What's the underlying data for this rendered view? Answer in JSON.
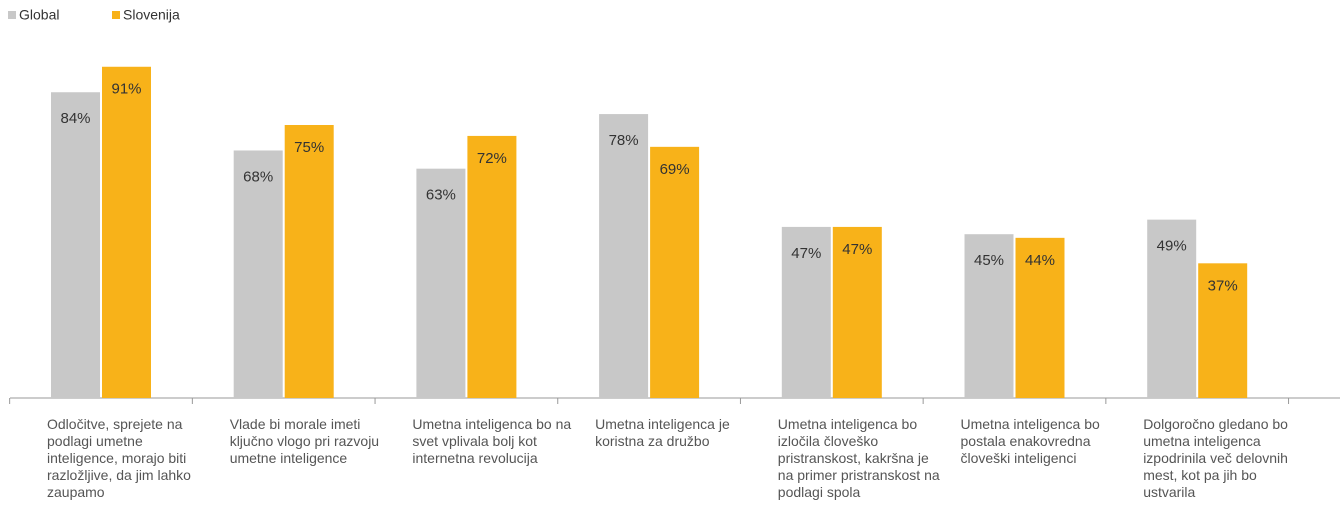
{
  "chart_data": {
    "type": "bar",
    "categories": [
      "Odločitve, sprejete na podlagi umetne inteligence, morajo biti razložljive, da jim lahko zaupamo",
      "Vlade bi morale imeti ključno vlogo pri razvoju umetne inteligence",
      "Umetna inteligenca bo na svet vplivala bolj kot internetna revolucija",
      "Umetna inteligenca je koristna za družbo",
      "Umetna inteligenca bo izločila človeško pristranskost, kakršna je na primer pristranskost na podlagi spola",
      "Umetna inteligenca bo postala enakovredna človeški inteligenci",
      "Dolgoročno gledano bo umetna inteligenca izpodrinila več delovnih mest, kot pa jih bo ustvarila"
    ],
    "series": [
      {
        "name": "Global",
        "color": "#c8c8c8",
        "values": [
          84,
          68,
          63,
          78,
          47,
          45,
          49
        ],
        "value_labels": [
          "84%",
          "68%",
          "63%",
          "78%",
          "47%",
          "45%",
          "49%"
        ]
      },
      {
        "name": "Slovenija",
        "color": "#f8b219",
        "values": [
          91,
          75,
          72,
          69,
          47,
          44,
          37
        ],
        "value_labels": [
          "91%",
          "75%",
          "72%",
          "69%",
          "47%",
          "44%",
          "37%"
        ]
      }
    ],
    "legend": "top-left"
  }
}
